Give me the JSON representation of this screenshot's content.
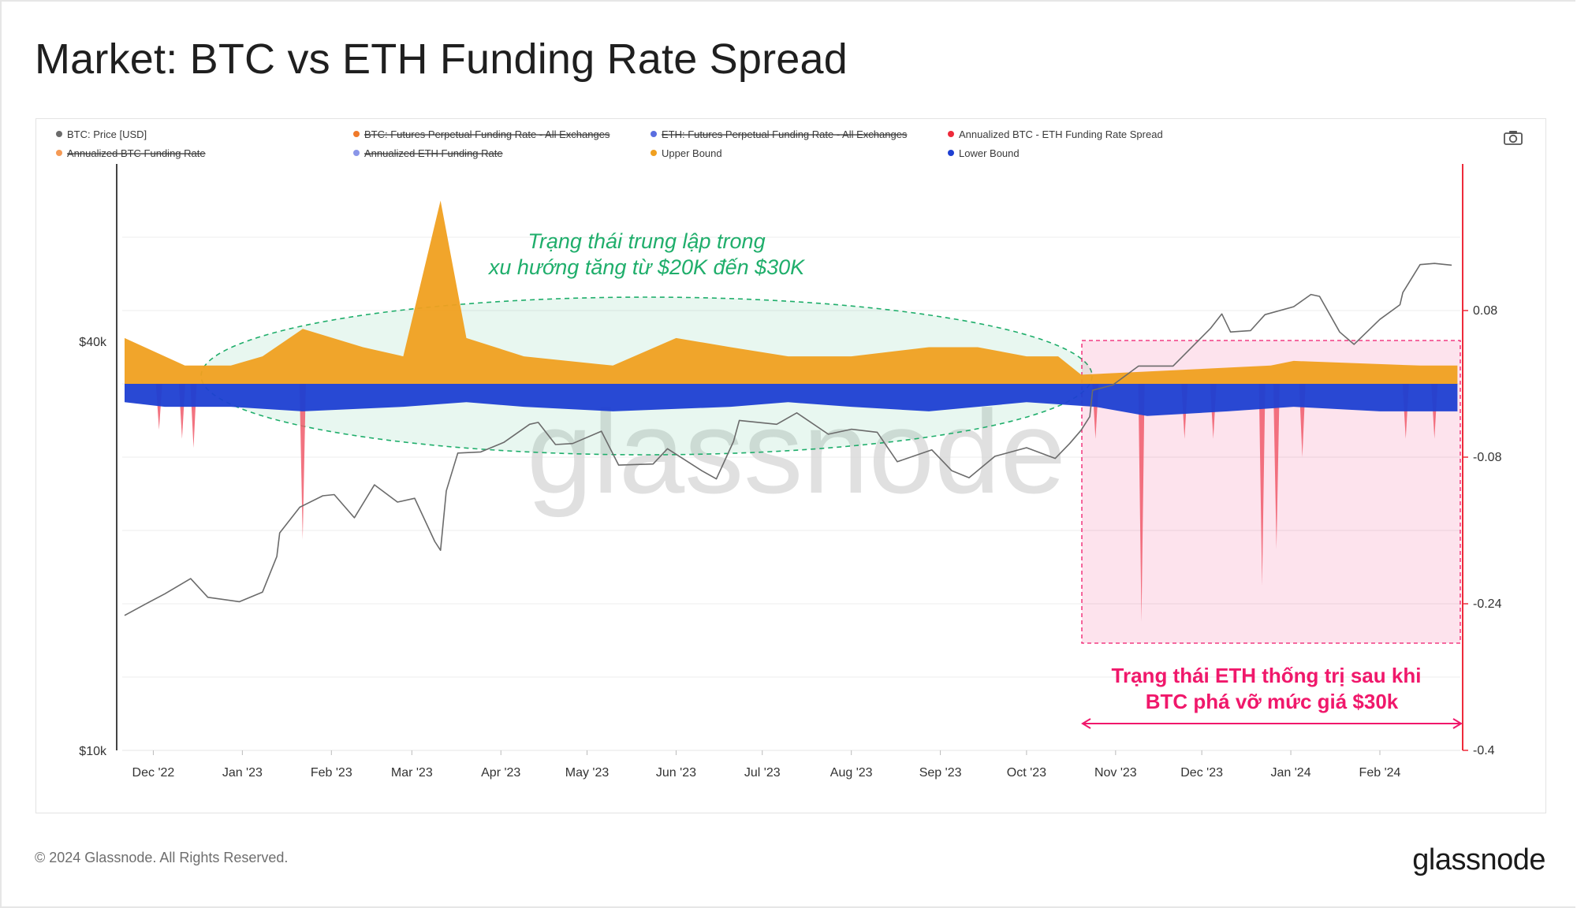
{
  "title": "Market: BTC vs ETH Funding Rate Spread",
  "copyright": "© 2024 Glassnode. All Rights Reserved.",
  "brand": "glassnode",
  "watermark": "glassnode",
  "colors": {
    "price": "#6b6b6b",
    "upper": "#f0a020",
    "lower": "#1e3fd2",
    "spread": "#f05a6a",
    "legend_btc_funding": "#f07a2a",
    "legend_eth_funding": "#5a6ee0",
    "legend_btc_annual": "#f59a55",
    "legend_eth_annual": "#8a96e8",
    "neutral_zone": "#1fae6b",
    "eth_zone": "#f0186b"
  },
  "legend": [
    {
      "label": "BTC: Price [USD]",
      "color": "#6b6b6b",
      "struck": false
    },
    {
      "label": "BTC: Futures Perpetual Funding Rate - All Exchanges",
      "color": "#f07a2a",
      "struck": true
    },
    {
      "label": "ETH: Futures Perpetual Funding Rate - All Exchanges",
      "color": "#5a6ee0",
      "struck": true
    },
    {
      "label": "Annualized BTC - ETH Funding Rate Spread",
      "color": "#ee2a3a",
      "struck": false
    },
    {
      "label": "Annualized BTC Funding Rate",
      "color": "#f59a55",
      "struck": true
    },
    {
      "label": "Annualized ETH Funding Rate",
      "color": "#8a96e8",
      "struck": true
    },
    {
      "label": "Upper Bound",
      "color": "#f0a020",
      "struck": false
    },
    {
      "label": "Lower Bound",
      "color": "#1e3fd2",
      "struck": false
    }
  ],
  "annotations": {
    "neutral_line1": "Trạng thái trung lập trong",
    "neutral_line2": "xu hướng tăng từ $20K đến $30K",
    "eth_line1": "Trạng thái ETH thống trị sau khi",
    "eth_line2": "BTC phá vỡ mức giá $30k"
  },
  "chart_data": {
    "type": "line",
    "x_tick_labels": [
      "Dec '22",
      "Jan '23",
      "Feb '23",
      "Mar '23",
      "Apr '23",
      "May '23",
      "Jun '23",
      "Jul '23",
      "Aug '23",
      "Sep '23",
      "Oct '23",
      "Nov '23",
      "Dec '23",
      "Jan '24",
      "Feb '24"
    ],
    "x_tick_dates": [
      "2022-12-01",
      "2023-01-01",
      "2023-02-01",
      "2023-03-01",
      "2023-04-01",
      "2023-05-01",
      "2023-06-01",
      "2023-07-01",
      "2023-08-01",
      "2023-09-01",
      "2023-10-01",
      "2023-11-01",
      "2023-12-01",
      "2024-01-01",
      "2024-02-01"
    ],
    "x_range": [
      "2022-11-21",
      "2024-02-29"
    ],
    "left_axis": {
      "scale": "log",
      "tick_labels": [
        "$40k",
        "$10k"
      ],
      "tick_values": [
        40000,
        10000
      ],
      "range": [
        10000,
        73000
      ]
    },
    "right_axis": {
      "tick_labels": [
        "0.08",
        "-0.08",
        "-0.24",
        "-0.4"
      ],
      "tick_values": [
        0.08,
        -0.08,
        -0.24,
        -0.4
      ],
      "range": [
        -0.4,
        0.24
      ]
    },
    "grid": true,
    "legend_position": "top",
    "series": [
      {
        "name": "BTC: Price [USD]",
        "axis": "left",
        "style": "line",
        "points": [
          [
            "2022-11-21",
            15800
          ],
          [
            "2022-11-28",
            16400
          ],
          [
            "2022-12-05",
            17000
          ],
          [
            "2022-12-14",
            17900
          ],
          [
            "2022-12-20",
            16800
          ],
          [
            "2022-12-31",
            16550
          ],
          [
            "2023-01-08",
            17100
          ],
          [
            "2023-01-13",
            19300
          ],
          [
            "2023-01-14",
            20900
          ],
          [
            "2023-01-21",
            22800
          ],
          [
            "2023-01-29",
            23700
          ],
          [
            "2023-02-02",
            23800
          ],
          [
            "2023-02-09",
            22000
          ],
          [
            "2023-02-16",
            24600
          ],
          [
            "2023-02-24",
            23200
          ],
          [
            "2023-03-02",
            23500
          ],
          [
            "2023-03-09",
            20300
          ],
          [
            "2023-03-11",
            19700
          ],
          [
            "2023-03-13",
            24100
          ],
          [
            "2023-03-17",
            27400
          ],
          [
            "2023-03-25",
            27500
          ],
          [
            "2023-04-02",
            28400
          ],
          [
            "2023-04-11",
            30200
          ],
          [
            "2023-04-14",
            30400
          ],
          [
            "2023-04-20",
            28200
          ],
          [
            "2023-04-26",
            28300
          ],
          [
            "2023-05-06",
            29500
          ],
          [
            "2023-05-12",
            26300
          ],
          [
            "2023-05-24",
            26400
          ],
          [
            "2023-05-29",
            27800
          ],
          [
            "2023-06-10",
            25800
          ],
          [
            "2023-06-15",
            25100
          ],
          [
            "2023-06-21",
            28500
          ],
          [
            "2023-06-23",
            30600
          ],
          [
            "2023-07-06",
            30200
          ],
          [
            "2023-07-13",
            31400
          ],
          [
            "2023-07-24",
            29200
          ],
          [
            "2023-08-01",
            29700
          ],
          [
            "2023-08-10",
            29400
          ],
          [
            "2023-08-17",
            26600
          ],
          [
            "2023-08-29",
            27700
          ],
          [
            "2023-09-05",
            25800
          ],
          [
            "2023-09-11",
            25200
          ],
          [
            "2023-09-20",
            27100
          ],
          [
            "2023-10-01",
            27900
          ],
          [
            "2023-10-11",
            26900
          ],
          [
            "2023-10-16",
            28300
          ],
          [
            "2023-10-20",
            29600
          ],
          [
            "2023-10-23",
            31000
          ],
          [
            "2023-10-24",
            33900
          ],
          [
            "2023-10-31",
            34500
          ],
          [
            "2023-11-09",
            36800
          ],
          [
            "2023-11-21",
            36800
          ],
          [
            "2023-12-04",
            41800
          ],
          [
            "2023-12-08",
            43900
          ],
          [
            "2023-12-11",
            41300
          ],
          [
            "2023-12-18",
            41500
          ],
          [
            "2023-12-23",
            43800
          ],
          [
            "2024-01-02",
            45000
          ],
          [
            "2024-01-08",
            46900
          ],
          [
            "2024-01-11",
            46600
          ],
          [
            "2024-01-18",
            41300
          ],
          [
            "2024-01-23",
            39600
          ],
          [
            "2024-02-01",
            43100
          ],
          [
            "2024-02-08",
            45300
          ],
          [
            "2024-02-09",
            47200
          ],
          [
            "2024-02-15",
            51900
          ],
          [
            "2024-02-20",
            52100
          ],
          [
            "2024-02-26",
            51800
          ]
        ]
      },
      {
        "name": "Upper Bound",
        "axis": "right",
        "style": "area",
        "points": [
          [
            "2022-11-21",
            0.05
          ],
          [
            "2022-11-28",
            0.04
          ],
          [
            "2022-12-05",
            0.03
          ],
          [
            "2022-12-12",
            0.02
          ],
          [
            "2022-12-28",
            0.02
          ],
          [
            "2023-01-08",
            0.03
          ],
          [
            "2023-01-22",
            0.06
          ],
          [
            "2023-02-12",
            0.04
          ],
          [
            "2023-02-26",
            0.03
          ],
          [
            "2023-03-11",
            0.2
          ],
          [
            "2023-03-20",
            0.05
          ],
          [
            "2023-04-09",
            0.03
          ],
          [
            "2023-05-10",
            0.02
          ],
          [
            "2023-06-01",
            0.05
          ],
          [
            "2023-06-20",
            0.04
          ],
          [
            "2023-07-10",
            0.03
          ],
          [
            "2023-08-01",
            0.03
          ],
          [
            "2023-08-28",
            0.04
          ],
          [
            "2023-09-14",
            0.04
          ],
          [
            "2023-10-01",
            0.03
          ],
          [
            "2023-10-12",
            0.03
          ],
          [
            "2023-10-20",
            0.01
          ],
          [
            "2023-12-25",
            0.02
          ],
          [
            "2024-01-02",
            0.025
          ],
          [
            "2024-02-15",
            0.02
          ],
          [
            "2024-02-28",
            0.02
          ]
        ]
      },
      {
        "name": "Lower Bound",
        "axis": "right",
        "style": "area",
        "points": [
          [
            "2022-11-21",
            -0.02
          ],
          [
            "2022-12-05",
            -0.025
          ],
          [
            "2022-12-28",
            -0.025
          ],
          [
            "2023-01-22",
            -0.03
          ],
          [
            "2023-02-26",
            -0.025
          ],
          [
            "2023-03-20",
            -0.02
          ],
          [
            "2023-04-09",
            -0.025
          ],
          [
            "2023-05-10",
            -0.03
          ],
          [
            "2023-06-20",
            -0.025
          ],
          [
            "2023-07-10",
            -0.02
          ],
          [
            "2023-08-01",
            -0.025
          ],
          [
            "2023-08-28",
            -0.03
          ],
          [
            "2023-10-01",
            -0.02
          ],
          [
            "2023-10-25",
            -0.025
          ],
          [
            "2023-11-12",
            -0.035
          ],
          [
            "2023-12-10",
            -0.03
          ],
          [
            "2024-01-02",
            -0.025
          ],
          [
            "2024-02-01",
            -0.03
          ],
          [
            "2024-02-28",
            -0.03
          ]
        ]
      },
      {
        "name": "Annualized BTC - ETH Funding Rate Spread",
        "axis": "right",
        "style": "area",
        "points": [
          [
            "2022-12-03",
            -0.05
          ],
          [
            "2022-12-11",
            -0.06
          ],
          [
            "2022-12-15",
            -0.07
          ],
          [
            "2023-01-22",
            -0.17
          ],
          [
            "2023-10-25",
            -0.06
          ],
          [
            "2023-11-10",
            -0.26
          ],
          [
            "2023-11-25",
            -0.06
          ],
          [
            "2023-12-05",
            -0.06
          ],
          [
            "2023-12-22",
            -0.22
          ],
          [
            "2023-12-27",
            -0.18
          ],
          [
            "2024-01-05",
            -0.08
          ],
          [
            "2024-02-10",
            -0.06
          ],
          [
            "2024-02-20",
            -0.06
          ]
        ]
      }
    ]
  }
}
